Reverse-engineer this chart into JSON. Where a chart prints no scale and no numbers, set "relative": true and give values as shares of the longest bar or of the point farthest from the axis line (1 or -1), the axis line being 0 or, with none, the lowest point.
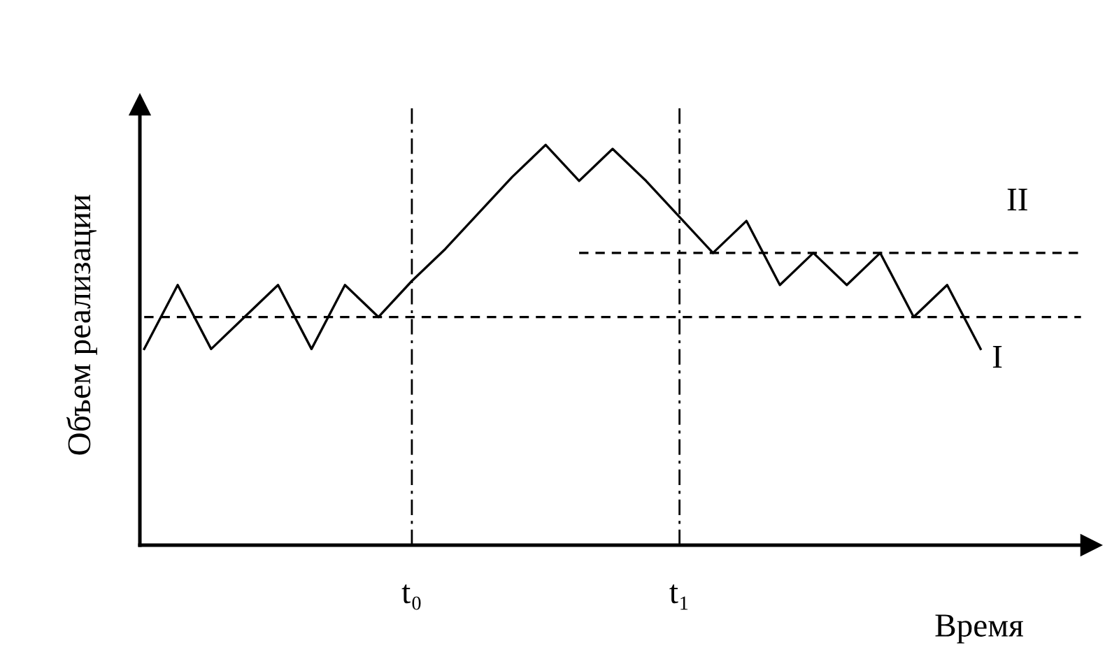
{
  "chart_data": {
    "type": "line",
    "relative": true,
    "xlabel": "Время",
    "ylabel": "Объем реализации",
    "tick_labels": "x",
    "grid": false,
    "legend": false,
    "marker": "none",
    "categories": [
      null,
      null,
      null,
      null,
      null,
      null,
      null,
      null,
      "t₀",
      null,
      null,
      null,
      null,
      null,
      null,
      null,
      "t₁",
      null,
      null,
      null,
      null,
      null,
      null,
      null,
      null,
      null,
      null,
      null,
      null
    ],
    "series": [
      {
        "color": "#000000",
        "line_style": "solid",
        "values": [
          0.49,
          0.65,
          0.49,
          0.57,
          0.65,
          0.49,
          0.65,
          0.57,
          0.66,
          0.74,
          0.83,
          0.92,
          1,
          0.91,
          0.99,
          0.91,
          0.82,
          0.73,
          0.81,
          0.65,
          0.73,
          0.65,
          0.73,
          0.57,
          0.65,
          0.49,
          null,
          null,
          null
        ]
      },
      {
        "name": "I",
        "color": "#000000",
        "line_style": "dashed",
        "values": [
          0.57,
          0.57,
          0.57,
          0.57,
          0.57,
          0.57,
          0.57,
          0.57,
          0.57,
          0.57,
          0.57,
          0.57,
          0.57,
          0.57,
          0.57,
          0.57,
          0.57,
          0.57,
          0.57,
          0.57,
          0.57,
          0.57,
          0.57,
          0.57,
          0.57,
          0.57,
          0.57,
          0.57,
          0.57
        ]
      },
      {
        "name": "II",
        "color": "#000000",
        "line_style": "dashed",
        "values": [
          null,
          null,
          null,
          null,
          null,
          null,
          null,
          null,
          null,
          null,
          null,
          null,
          null,
          0.73,
          0.73,
          0.73,
          0.73,
          0.73,
          0.73,
          0.73,
          0.73,
          0.73,
          0.73,
          0.73,
          0.73,
          0.73,
          0.73,
          0.73,
          0.73
        ]
      }
    ],
    "ref_lines": [
      {
        "axis": "x",
        "value": "t₀",
        "color": "#000000",
        "line_style": "dashdot"
      },
      {
        "axis": "x",
        "value": "t₁",
        "color": "#000000",
        "line_style": "dashdot"
      }
    ]
  }
}
